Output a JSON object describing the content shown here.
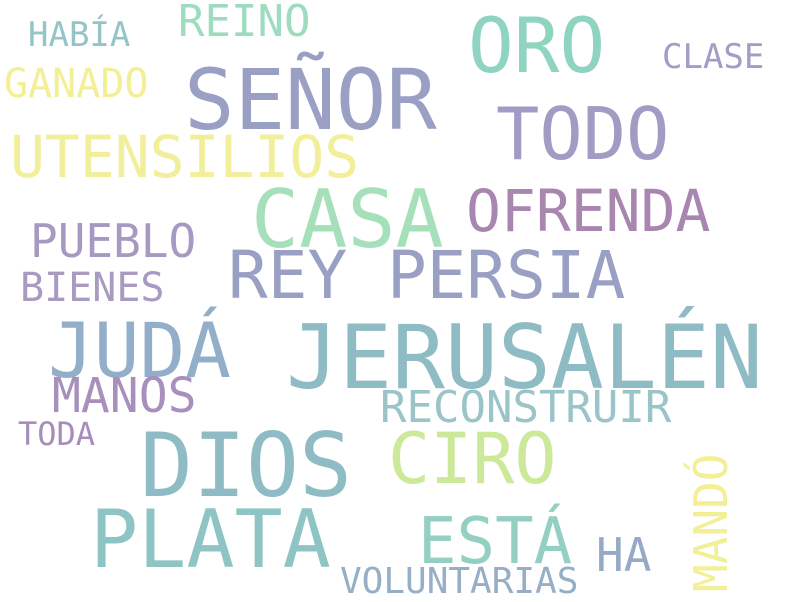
{
  "word_cloud": {
    "background_color": "#ffffff",
    "words": [
      {
        "text": "JERUSALÉN",
        "color": "#8fbcc4"
      },
      {
        "text": "SEÑOR",
        "color": "#9aa0c4"
      },
      {
        "text": "DIOS",
        "color": "#8fbcc4"
      },
      {
        "text": "CASA",
        "color": "#a6e0ba"
      },
      {
        "text": "PLATA",
        "color": "#8ec4c4"
      },
      {
        "text": "JUDÁ",
        "color": "#93aec8"
      },
      {
        "text": "REY PERSIA",
        "color": "#9aa0c4"
      },
      {
        "text": "ORO",
        "color": "#8fd4c0"
      },
      {
        "text": "CIRO",
        "color": "#cce99a"
      },
      {
        "text": "TODO",
        "color": "#a19cc4"
      },
      {
        "text": "UTENSILIOS",
        "color": "#f2ef9a"
      },
      {
        "text": "ESTÁ",
        "color": "#93cfc2"
      },
      {
        "text": "OFRENDA",
        "color": "#a886b0"
      },
      {
        "text": "MANOS",
        "color": "#a890bc"
      },
      {
        "text": "PUEBLO",
        "color": "#a69ac2"
      },
      {
        "text": "HA",
        "color": "#96aac6"
      },
      {
        "text": "RECONSTRUIR",
        "color": "#9ac4c8"
      },
      {
        "text": "REINO",
        "color": "#9edcbf"
      },
      {
        "text": "GANADO",
        "color": "#f2ef96"
      },
      {
        "text": "BIENES",
        "color": "#a99ac2"
      },
      {
        "text": "MANDÓ",
        "color": "#f3ef97"
      },
      {
        "text": "VOLUNTARIAS",
        "color": "#96aec6"
      },
      {
        "text": "CLASE",
        "color": "#a49cc4"
      },
      {
        "text": "HABÍA",
        "color": "#94c4c6"
      },
      {
        "text": "TODA",
        "color": "#a78dbb"
      }
    ]
  }
}
